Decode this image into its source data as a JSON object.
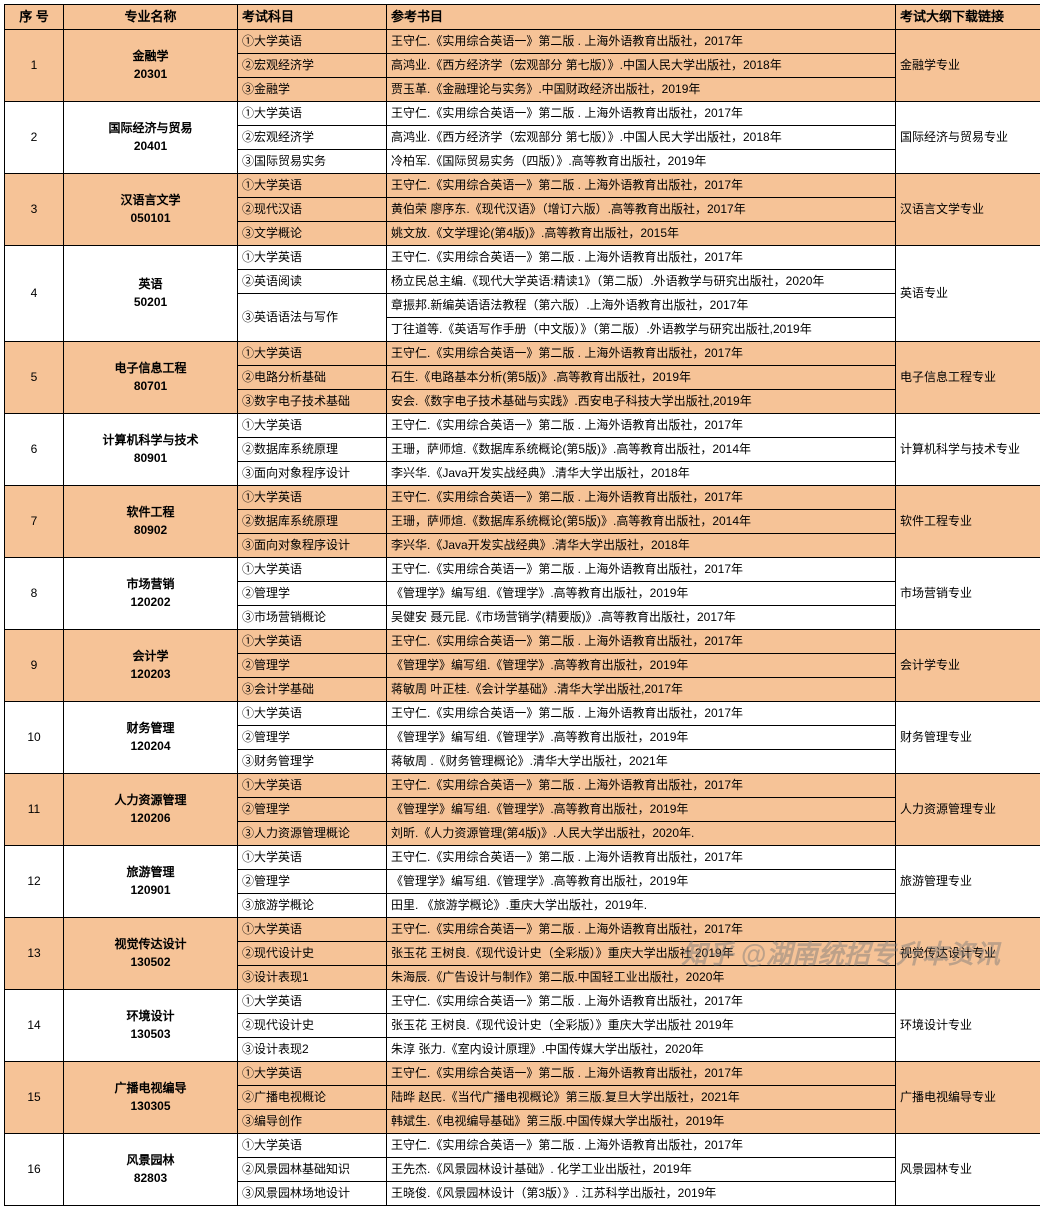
{
  "headers": {
    "seq": "序 号",
    "major": "专业名称",
    "subject": "考试科目",
    "book": "参考书目",
    "link": "考试大纲下载链接"
  },
  "watermark": "知乎 @湖南统招专升本资讯",
  "rows": [
    {
      "seq": "1",
      "shade": "odd",
      "major_lines": [
        "金融学",
        "20301"
      ],
      "link": "金融学专业",
      "subs": [
        {
          "s": "①大学英语",
          "b": "王守仁.《实用综合英语一》第二版 . 上海外语教育出版社，2017年"
        },
        {
          "s": "②宏观经济学",
          "b": "高鸿业.《西方经济学（宏观部分 第七版）》.中国人民大学出版社，2018年"
        },
        {
          "s": "③金融学",
          "b": "贾玉革.《金融理论与实务》.中国财政经济出版社，2019年"
        }
      ]
    },
    {
      "seq": "2",
      "shade": "even",
      "major_lines": [
        "国际经济与贸易",
        "20401"
      ],
      "link": "国际经济与贸易专业",
      "subs": [
        {
          "s": "①大学英语",
          "b": "王守仁.《实用综合英语一》第二版 . 上海外语教育出版社，2017年"
        },
        {
          "s": "②宏观经济学",
          "b": "高鸿业.《西方经济学（宏观部分 第七版）》.中国人民大学出版社，2018年"
        },
        {
          "s": "③国际贸易实务",
          "b": "冷柏军.《国际贸易实务（四版）》.高等教育出版社，2019年"
        }
      ]
    },
    {
      "seq": "3",
      "shade": "odd",
      "major_lines": [
        "汉语言文学",
        "050101"
      ],
      "link": "汉语言文学专业",
      "subs": [
        {
          "s": "①大学英语",
          "b": "王守仁.《实用综合英语一》第二版 . 上海外语教育出版社，2017年"
        },
        {
          "s": "②现代汉语",
          "b": "黄伯荣 廖序东.《现代汉语》（增订六版）.高等教育出版社，2017年"
        },
        {
          "s": "③文学概论",
          "b": "姚文放.《文学理论(第4版)》.高等教育出版社，2015年"
        }
      ]
    },
    {
      "seq": "4",
      "shade": "even",
      "major_lines": [
        "",
        "英语",
        "50201",
        ""
      ],
      "link": "英语专业",
      "subs": [
        {
          "s": "①大学英语",
          "b": "王守仁.《实用综合英语一》第二版 . 上海外语教育出版社，2017年"
        },
        {
          "s": "②英语阅读",
          "b": "杨立民总主编.《现代大学英语:精读1》（第二版）.外语教学与研究出版社，2020年"
        },
        {
          "s": "③英语语法与写作",
          "b": "章振邦.新编英语语法教程（第六版）.上海外语教育出版社，2017年",
          "rs": 2
        },
        {
          "b": "丁往道等.《英语写作手册（中文版）》（第二版）.外语教学与研究出版社,2019年"
        }
      ]
    },
    {
      "seq": "5",
      "shade": "odd",
      "major_lines": [
        "电子信息工程",
        "80701"
      ],
      "link": "电子信息工程专业",
      "subs": [
        {
          "s": "①大学英语",
          "b": "王守仁.《实用综合英语一》第二版 . 上海外语教育出版社，2017年"
        },
        {
          "s": "②电路分析基础",
          "b": "石生.《电路基本分析(第5版)》.高等教育出版社，2019年"
        },
        {
          "s": "③数字电子技术基础",
          "b": "安会.《数字电子技术基础与实践》.西安电子科技大学出版社,2019年"
        }
      ]
    },
    {
      "seq": "6",
      "shade": "even",
      "major_lines": [
        "计算机科学与技术",
        "80901"
      ],
      "link": "计算机科学与技术专业",
      "subs": [
        {
          "s": "①大学英语",
          "b": "王守仁.《实用综合英语一》第二版 . 上海外语教育出版社，2017年"
        },
        {
          "s": "②数据库系统原理",
          "b": "王珊，萨师煊.《数据库系统概论(第5版)》.高等教育出版社，2014年"
        },
        {
          "s": "③面向对象程序设计",
          "b": "李兴华.《Java开发实战经典》.清华大学出版社，2018年"
        }
      ]
    },
    {
      "seq": "7",
      "shade": "odd",
      "major_lines": [
        "软件工程",
        "80902"
      ],
      "link": "软件工程专业",
      "subs": [
        {
          "s": "①大学英语",
          "b": "王守仁.《实用综合英语一》第二版 . 上海外语教育出版社，2017年"
        },
        {
          "s": "②数据库系统原理",
          "b": "王珊，萨师煊.《数据库系统概论(第5版)》.高等教育出版社，2014年"
        },
        {
          "s": "③面向对象程序设计",
          "b": "李兴华.《Java开发实战经典》.清华大学出版社，2018年"
        }
      ]
    },
    {
      "seq": "8",
      "shade": "even",
      "major_lines": [
        "市场营销",
        "120202"
      ],
      "link": "市场营销专业",
      "subs": [
        {
          "s": "①大学英语",
          "b": "王守仁.《实用综合英语一》第二版 . 上海外语教育出版社，2017年"
        },
        {
          "s": "②管理学",
          "b": "《管理学》编写组.《管理学》.高等教育出版社，2019年"
        },
        {
          "s": "③市场营销概论",
          "b": "吴健安 聂元昆.《市场营销学(精要版)》.高等教育出版社，2017年"
        }
      ]
    },
    {
      "seq": "9",
      "shade": "odd",
      "major_lines": [
        "会计学",
        "120203"
      ],
      "link": "会计学专业",
      "subs": [
        {
          "s": "①大学英语",
          "b": "王守仁.《实用综合英语一》第二版 . 上海外语教育出版社，2017年"
        },
        {
          "s": "②管理学",
          "b": "《管理学》编写组.《管理学》.高等教育出版社，2019年"
        },
        {
          "s": "③会计学基础",
          "b": "蒋敏周 叶正桂.《会计学基础》.清华大学出版社,2017年"
        }
      ]
    },
    {
      "seq": "10",
      "shade": "even",
      "major_lines": [
        "财务管理",
        "120204"
      ],
      "link": "财务管理专业",
      "subs": [
        {
          "s": "①大学英语",
          "b": "王守仁.《实用综合英语一》第二版 . 上海外语教育出版社，2017年"
        },
        {
          "s": "②管理学",
          "b": "《管理学》编写组.《管理学》.高等教育出版社，2019年"
        },
        {
          "s": "③财务管理学",
          "b": "蒋敏周 .《财务管理概论》.清华大学出版社，2021年"
        }
      ]
    },
    {
      "seq": "11",
      "shade": "odd",
      "major_lines": [
        "人力资源管理",
        "120206"
      ],
      "link": "人力资源管理专业",
      "subs": [
        {
          "s": "①大学英语",
          "b": "王守仁.《实用综合英语一》第二版 . 上海外语教育出版社，2017年"
        },
        {
          "s": "②管理学",
          "b": "《管理学》编写组.《管理学》.高等教育出版社，2019年"
        },
        {
          "s": "③人力资源管理概论",
          "b": "刘昕.《人力资源管理(第4版)》.人民大学出版社，2020年."
        }
      ]
    },
    {
      "seq": "12",
      "shade": "even",
      "major_lines": [
        "旅游管理",
        "120901"
      ],
      "link": "旅游管理专业",
      "subs": [
        {
          "s": "①大学英语",
          "b": "王守仁.《实用综合英语一》第二版 . 上海外语教育出版社，2017年"
        },
        {
          "s": "②管理学",
          "b": "《管理学》编写组.《管理学》.高等教育出版社，2019年"
        },
        {
          "s": "③旅游学概论",
          "b": "田里. 《旅游学概论》.重庆大学出版社，2019年."
        }
      ]
    },
    {
      "seq": "13",
      "shade": "odd",
      "major_lines": [
        "视觉传达设计",
        "130502"
      ],
      "link": "视觉传达设计专业",
      "subs": [
        {
          "s": "①大学英语",
          "b": "王守仁.《实用综合英语一》第二版 . 上海外语教育出版社，2017年"
        },
        {
          "s": "②现代设计史",
          "b": "张玉花 王树良.《现代设计史（全彩版）》重庆大学出版社 2019年"
        },
        {
          "s": "③设计表现1",
          "b": "朱海辰.《广告设计与制作》第二版.中国轻工业出版社，2020年"
        }
      ]
    },
    {
      "seq": "14",
      "shade": "even",
      "major_lines": [
        "环境设计",
        "130503"
      ],
      "link": "环境设计专业",
      "subs": [
        {
          "s": "①大学英语",
          "b": "王守仁.《实用综合英语一》第二版 . 上海外语教育出版社，2017年"
        },
        {
          "s": "②现代设计史",
          "b": "张玉花 王树良.《现代设计史（全彩版）》重庆大学出版社 2019年"
        },
        {
          "s": "③设计表现2",
          "b": "朱淳 张力.《室内设计原理》.中国传媒大学出版社，2020年"
        }
      ]
    },
    {
      "seq": "15",
      "shade": "odd",
      "major_lines": [
        "广播电视编导",
        "130305"
      ],
      "link": "广播电视编导专业",
      "subs": [
        {
          "s": "①大学英语",
          "b": "王守仁.《实用综合英语一》第二版 . 上海外语教育出版社，2017年"
        },
        {
          "s": "②广播电视概论",
          "b": "陆晔 赵民.《当代广播电视概论》第三版.复旦大学出版社，2021年"
        },
        {
          "s": "③编导创作",
          "b": "韩斌生.《电视编导基础》第三版.中国传媒大学出版社，2019年"
        }
      ]
    },
    {
      "seq": "16",
      "shade": "even",
      "major_lines": [
        "风景园林",
        "82803"
      ],
      "link": "风景园林专业",
      "subs": [
        {
          "s": "①大学英语",
          "b": "王守仁.《实用综合英语一》第二版 . 上海外语教育出版社，2017年"
        },
        {
          "s": "②风景园林基础知识",
          "b": "王先杰.《风景园林设计基础》. 化学工业出版社，2019年"
        },
        {
          "s": "③风景园林场地设计",
          "b": "王晓俊.《风景园林设计（第3版）》. 江苏科学出版社，2019年"
        }
      ]
    }
  ]
}
